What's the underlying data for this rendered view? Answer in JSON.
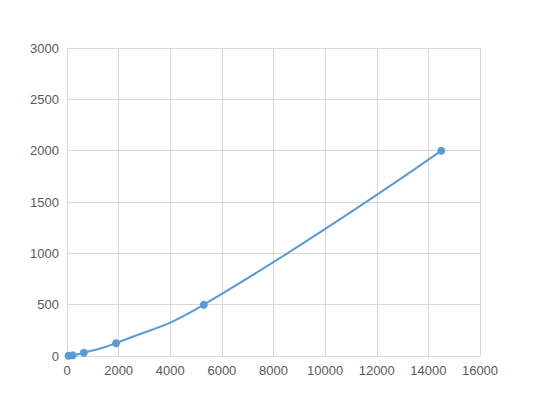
{
  "chart_data": {
    "type": "line",
    "x": [
      60,
      220,
      650,
      1900,
      5300,
      14500
    ],
    "values": [
      2,
      8,
      31,
      125,
      500,
      2000
    ],
    "color": "#5b9bd5",
    "marker": "circle",
    "line_style": "solid",
    "xlim": [
      0,
      16000
    ],
    "xticks": [
      0,
      2000,
      4000,
      6000,
      8000,
      10000,
      12000,
      14000,
      16000
    ],
    "ylim": [
      0,
      3000
    ],
    "yticks": [
      0,
      500,
      1000,
      1500,
      2000,
      2500,
      3000
    ],
    "grid": true
  }
}
